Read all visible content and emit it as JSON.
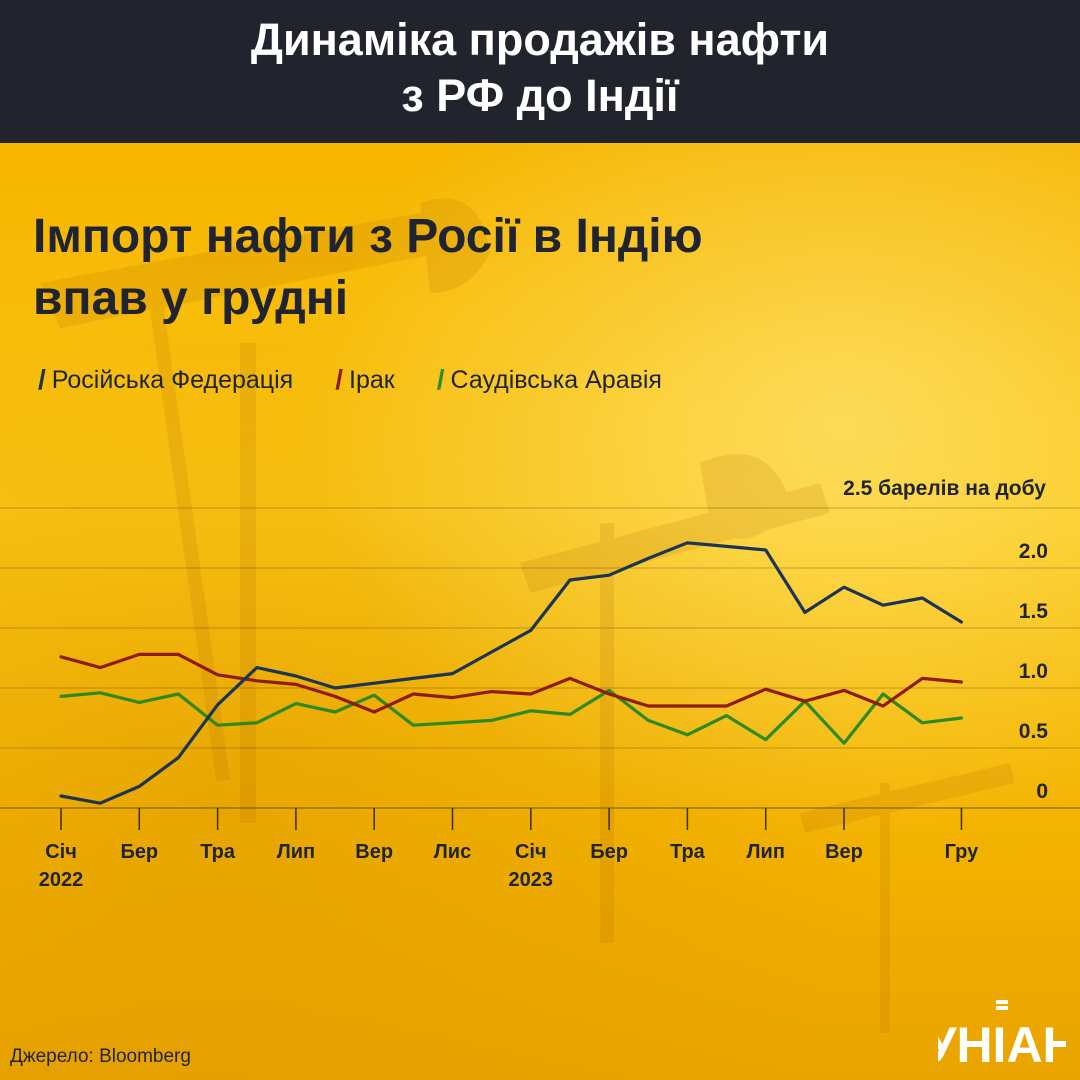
{
  "banner": {
    "line1": "Динаміка продажів нафти",
    "line2": "з РФ до Індії"
  },
  "chart_data": {
    "type": "line",
    "title_lines": [
      "Імпорт нафти з Росії в Індію",
      "впав у грудні"
    ],
    "ylabel": "2.5 барелів на добу",
    "ylim": [
      0,
      2.5
    ],
    "yticks": [
      "0",
      "0.5",
      "1.0",
      "1.5",
      "2.0"
    ],
    "yticks_values": [
      0,
      0.5,
      1.0,
      1.5,
      2.0
    ],
    "x": [
      0,
      1,
      2,
      3,
      4,
      5,
      6,
      7,
      8,
      9,
      10,
      11,
      12,
      13,
      14,
      15,
      16,
      17,
      18,
      19,
      20,
      21,
      22,
      23
    ],
    "xtick_positions": [
      0,
      2,
      4,
      6,
      8,
      10,
      12,
      14,
      16,
      18,
      20,
      23
    ],
    "xtick_labels": [
      [
        "Січ",
        "2022"
      ],
      [
        "Бер"
      ],
      [
        "Тра"
      ],
      [
        "Лип"
      ],
      [
        "Вер"
      ],
      [
        "Лис"
      ],
      [
        "Січ",
        "2023"
      ],
      [
        "Бер"
      ],
      [
        "Тра"
      ],
      [
        "Лип"
      ],
      [
        "Вер"
      ],
      [
        "Гру"
      ]
    ],
    "grid": true,
    "legend_position": "top-left",
    "series": [
      {
        "name": "Російська Федерація",
        "color": "#1c3557",
        "values": [
          0.1,
          0.04,
          0.18,
          0.42,
          0.86,
          1.17,
          1.1,
          1.0,
          1.04,
          1.08,
          1.12,
          1.3,
          1.48,
          1.9,
          1.94,
          2.08,
          2.21,
          2.18,
          2.15,
          1.63,
          1.84,
          1.69,
          1.75,
          1.55
        ]
      },
      {
        "name": "Ірак",
        "color": "#8e1b14",
        "values": [
          1.26,
          1.17,
          1.28,
          1.28,
          1.11,
          1.06,
          1.03,
          0.93,
          0.8,
          0.95,
          0.92,
          0.97,
          0.95,
          1.08,
          0.95,
          0.85,
          0.85,
          0.85,
          0.99,
          0.89,
          0.98,
          0.85,
          1.08,
          1.05
        ]
      },
      {
        "name": "Саудівська Аравія",
        "color": "#2e8a1d",
        "values": [
          0.93,
          0.96,
          0.88,
          0.95,
          0.69,
          0.71,
          0.87,
          0.8,
          0.94,
          0.69,
          0.71,
          0.73,
          0.81,
          0.78,
          0.98,
          0.73,
          0.61,
          0.77,
          0.57,
          0.89,
          0.54,
          0.95,
          0.71,
          0.75
        ]
      }
    ]
  },
  "source": "Джерело: Bloomberg",
  "logo_text": "УНІАН"
}
